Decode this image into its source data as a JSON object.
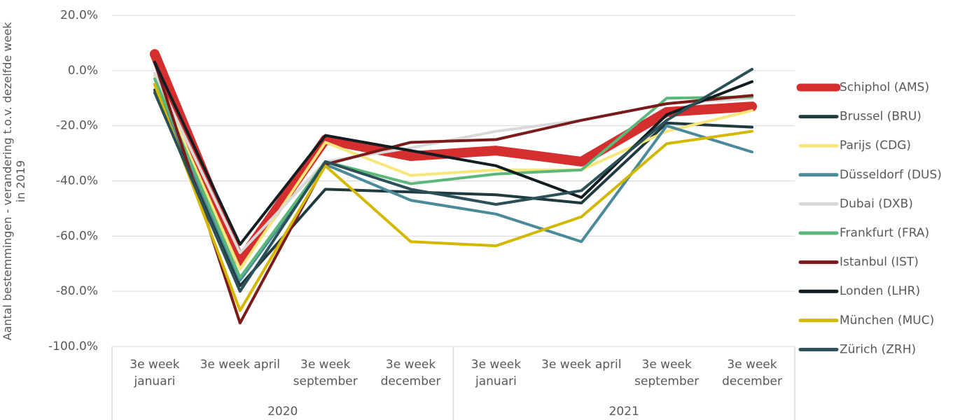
{
  "chart_data": {
    "type": "line",
    "y_label": "Aantal bestemmingen - verandering t.o.v. dezelfde week in 2019",
    "categories": [
      "3e week januari",
      "3e week april",
      "3e week september",
      "3e week december",
      "3e week januari",
      "3e week april",
      "3e week september",
      "3e week december"
    ],
    "groups": [
      {
        "name": "2020",
        "span": 4
      },
      {
        "name": "2021",
        "span": 4
      }
    ],
    "ylim": [
      -100,
      20
    ],
    "yticks": [
      {
        "value": 20,
        "label": "20.0%"
      },
      {
        "value": 0,
        "label": "0.0%"
      },
      {
        "value": -20,
        "label": "-20.0%"
      },
      {
        "value": -40,
        "label": "-40.0%"
      },
      {
        "value": -60,
        "label": "-60.0%"
      },
      {
        "value": -80,
        "label": "-80.0%"
      },
      {
        "value": -100,
        "label": "-100.0%"
      }
    ],
    "grid": true,
    "legend": "right",
    "series": [
      {
        "name": "Schiphol (AMS)",
        "color": "#d42e2e",
        "values": [
          6,
          -69,
          -25,
          -31,
          -29,
          -33,
          -15,
          -13
        ]
      },
      {
        "name": "Brussel (BRU)",
        "color": "#1f3b3f",
        "values": [
          -7,
          -78,
          -43,
          -44,
          -45,
          -48,
          -19,
          -20.5
        ]
      },
      {
        "name": "Parijs (CDG)",
        "color": "#f7e67a",
        "values": [
          -2,
          -72,
          -26,
          -38,
          -36,
          -36,
          -22,
          -14.5
        ]
      },
      {
        "name": "Düsseldorf (DUS)",
        "color": "#4a8a9a",
        "values": [
          -5,
          -76,
          -34,
          -47,
          -52,
          -62,
          -20,
          -29.5
        ]
      },
      {
        "name": "Dubai (DXB)",
        "color": "#d9d9d9",
        "values": [
          -1,
          -66,
          -33,
          -28,
          -22,
          -18,
          -12,
          -10
        ]
      },
      {
        "name": "Frankfurt (FRA)",
        "color": "#5cb87a",
        "values": [
          -3,
          -75,
          -33,
          -41,
          -37.5,
          -36,
          -10,
          -9.5
        ]
      },
      {
        "name": "Istanbul (IST)",
        "color": "#7a1a1a",
        "values": [
          3,
          -91.5,
          -34,
          -26,
          -25,
          -18,
          -12,
          -9
        ]
      },
      {
        "name": "Londen (LHR)",
        "color": "#111d20",
        "values": [
          3,
          -63,
          -23.5,
          -29,
          -34.5,
          -46,
          -16,
          -4
        ]
      },
      {
        "name": "München (MUC)",
        "color": "#d4b800",
        "values": [
          -5,
          -87,
          -34.5,
          -62,
          -63.5,
          -53,
          -26.5,
          -22
        ]
      },
      {
        "name": "Zürich (ZRH)",
        "color": "#2b5058",
        "values": [
          -8,
          -80,
          -33,
          -43,
          -48.5,
          -43.5,
          -18,
          0.5
        ]
      }
    ]
  }
}
